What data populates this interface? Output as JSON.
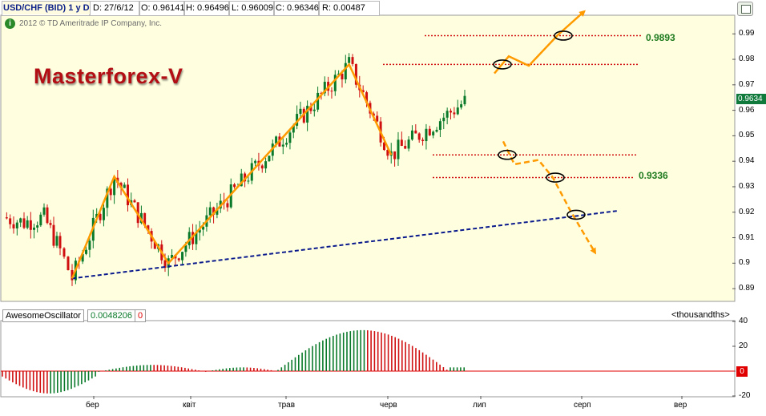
{
  "header": {
    "symbol": "USD/CHF (BID) 1 y D",
    "date": "D: 27/6/12",
    "open": "O: 0.96141",
    "high": "H: 0.96496",
    "low": "L: 0.96009",
    "close": "C: 0.96346",
    "range": "R: 0.00487"
  },
  "copyright": "2012 © TD Ameritrade IP Company, Inc.",
  "brand": "Masterforex-V",
  "levels": {
    "upper": "0.9893",
    "lower": "0.9336"
  },
  "price_badge": "0.9634",
  "oscillator": {
    "name": "AwesomeOscillator",
    "value": "0.0048206",
    "flag": "0",
    "units": "<thousandths>",
    "zero_badge": "0"
  },
  "colors": {
    "background": "#ffffe0",
    "bull_candle": "#0a7a2a",
    "bear_candle": "#d01010",
    "pattern": "#ff9a00",
    "trendline": "#0a1a8c",
    "level_line": "#d01010"
  },
  "chart_data": [
    {
      "type": "candlestick",
      "title": "USD/CHF (BID) 1 y D",
      "y_ticks": [
        "0.99",
        "0.98",
        "0.97",
        "0.96",
        "0.95",
        "0.94",
        "0.93",
        "0.92",
        "0.91",
        "0.9",
        "0.89"
      ],
      "ylim": [
        0.885,
        0.997
      ],
      "x_ticks": [
        "бер",
        "квіт",
        "трав",
        "черв",
        "лип",
        "серп",
        "вер"
      ],
      "pattern_points": [
        {
          "date": "2012-03-01",
          "value": 0.894
        },
        {
          "date": "2012-03-15",
          "value": 0.934
        },
        {
          "date": "2012-04-02",
          "value": 0.9
        },
        {
          "date": "2012-06-01",
          "value": 0.978
        },
        {
          "date": "2012-06-15",
          "value": 0.9425
        }
      ],
      "trendline": [
        {
          "date": "2012-03-01",
          "value": 0.894
        },
        {
          "date": "2012-08-29",
          "value": 0.9205
        }
      ],
      "resistance_levels": [
        0.9893,
        0.978
      ],
      "support_levels": [
        0.9425,
        0.9336
      ],
      "last_price": 0.9634
    },
    {
      "type": "bar",
      "title": "AwesomeOscillator",
      "y_ticks": [
        "40",
        "20",
        "0",
        "-20"
      ],
      "ylim": [
        -20,
        40
      ],
      "units": "<thousandths>",
      "last_value": 0.0048206
    }
  ]
}
